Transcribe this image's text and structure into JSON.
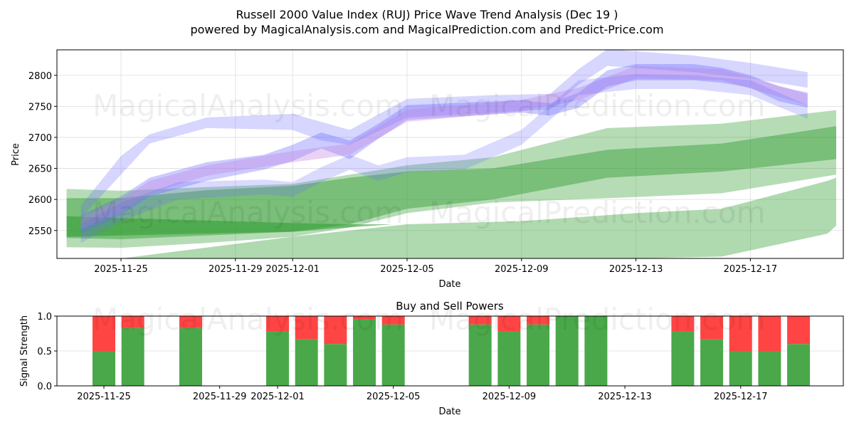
{
  "title_line1": "Russell 2000 Value Index (RUJ) Price Wave Trend Analysis (Dec 19 )",
  "title_line2": "powered by MagicalAnalysis.com and MagicalPrediction.com and Predict-Price.com",
  "watermarks": [
    "MagicalAnalysis.com",
    "MagicalPrediction.com"
  ],
  "chart_data": [
    {
      "type": "area",
      "title": "",
      "xlabel": "Date",
      "ylabel": "Price",
      "ylim": [
        2505,
        2841
      ],
      "x_ticks": [
        {
          "day": 0,
          "label": "2025-11-25"
        },
        {
          "day": 4,
          "label": "2025-11-29"
        },
        {
          "day": 6,
          "label": "2025-12-01"
        },
        {
          "day": 10,
          "label": "2025-12-05"
        },
        {
          "day": 14,
          "label": "2025-12-09"
        },
        {
          "day": 18,
          "label": "2025-12-13"
        },
        {
          "day": 22,
          "label": "2025-12-17"
        }
      ],
      "y_ticks": [
        2550,
        2600,
        2650,
        2700,
        2750,
        2800
      ],
      "x_unit": "days since 2025-11-25",
      "grid": true,
      "bands": [
        {
          "name": "green-band-wide",
          "color": "#2e9a2e",
          "opacity": 0.35,
          "x": [
            -1.9,
            0,
            3,
            6,
            8,
            10,
            13,
            17,
            21,
            25
          ],
          "upper": [
            2617,
            2614,
            2620,
            2625,
            2640,
            2655,
            2668,
            2715,
            2722,
            2744
          ],
          "lower": [
            2523,
            2522,
            2530,
            2540,
            2555,
            2578,
            2595,
            2602,
            2610,
            2640
          ]
        },
        {
          "name": "green-band-mid",
          "color": "#2e9a2e",
          "opacity": 0.45,
          "x": [
            -1.9,
            0,
            3,
            6,
            8,
            10,
            13,
            17,
            21,
            25
          ],
          "upper": [
            2602,
            2602,
            2615,
            2622,
            2635,
            2645,
            2650,
            2680,
            2690,
            2718
          ],
          "lower": [
            2538,
            2536,
            2542,
            2548,
            2560,
            2585,
            2600,
            2635,
            2645,
            2665
          ]
        },
        {
          "name": "green-band-dark",
          "color": "#2e9a2e",
          "opacity": 0.55,
          "x": [
            -1.9,
            0,
            3,
            6,
            8,
            9.5
          ],
          "upper": [
            2573,
            2570,
            2566,
            2562,
            2560,
            2560
          ],
          "lower": [
            2540,
            2542,
            2545,
            2548,
            2555,
            2560
          ]
        },
        {
          "name": "green-band-low",
          "color": "#2e9a2e",
          "opacity": 0.38,
          "x": [
            -1.9,
            0,
            6,
            10,
            14,
            18,
            21,
            24.7,
            25
          ],
          "upper": [
            2505,
            2505,
            2540,
            2560,
            2565,
            2578,
            2585,
            2630,
            2635
          ],
          "lower": [
            2505,
            2505,
            2505,
            2505,
            2505,
            2505,
            2508,
            2545,
            2558
          ]
        },
        {
          "name": "blue-band-upper",
          "color": "#6a6aff",
          "opacity": 0.28,
          "x": [
            -1.4,
            0,
            1,
            3,
            6,
            7,
            8,
            10,
            13,
            15,
            16,
            17,
            20,
            22,
            24
          ],
          "upper": [
            2590,
            2670,
            2705,
            2732,
            2738,
            2725,
            2712,
            2762,
            2768,
            2770,
            2810,
            2842,
            2832,
            2820,
            2805
          ],
          "lower": [
            2570,
            2640,
            2690,
            2715,
            2712,
            2695,
            2688,
            2732,
            2740,
            2745,
            2785,
            2815,
            2805,
            2795,
            2780
          ]
        },
        {
          "name": "blue-band-center",
          "color": "#6a6aff",
          "opacity": 0.35,
          "x": [
            -1.4,
            0,
            1,
            3,
            5,
            6,
            7,
            8,
            9,
            10,
            12,
            14,
            15,
            16,
            17,
            18,
            20,
            21,
            22,
            23,
            24
          ],
          "upper": [
            2575,
            2605,
            2635,
            2660,
            2672,
            2688,
            2708,
            2695,
            2722,
            2752,
            2756,
            2760,
            2755,
            2772,
            2808,
            2818,
            2818,
            2812,
            2800,
            2782,
            2772
          ],
          "lower": [
            2545,
            2575,
            2605,
            2630,
            2648,
            2662,
            2682,
            2665,
            2698,
            2728,
            2734,
            2740,
            2735,
            2748,
            2782,
            2792,
            2792,
            2788,
            2780,
            2758,
            2748
          ]
        },
        {
          "name": "purple-band-center",
          "color": "#c080e0",
          "opacity": 0.35,
          "x": [
            -1.4,
            0,
            1,
            3,
            6,
            8,
            10,
            14,
            16,
            18,
            21,
            24
          ],
          "upper": [
            2570,
            2600,
            2630,
            2655,
            2678,
            2690,
            2745,
            2760,
            2780,
            2815,
            2810,
            2770
          ],
          "lower": [
            2552,
            2580,
            2610,
            2638,
            2660,
            2672,
            2725,
            2742,
            2760,
            2795,
            2792,
            2752
          ]
        },
        {
          "name": "blue-band-lower",
          "color": "#6a6aff",
          "opacity": 0.25,
          "x": [
            -1.4,
            0,
            2,
            5,
            6,
            7,
            8,
            9,
            10,
            12,
            14,
            15,
            16,
            18,
            20,
            22,
            24
          ],
          "upper": [
            2560,
            2595,
            2628,
            2632,
            2628,
            2652,
            2672,
            2655,
            2668,
            2672,
            2712,
            2752,
            2792,
            2802,
            2800,
            2792,
            2752
          ],
          "lower": [
            2530,
            2565,
            2600,
            2608,
            2604,
            2628,
            2648,
            2630,
            2644,
            2648,
            2688,
            2728,
            2768,
            2778,
            2778,
            2768,
            2730
          ]
        }
      ]
    },
    {
      "type": "bar",
      "title": "Buy and Sell Powers",
      "xlabel": "Date",
      "ylabel": "Signal Strength",
      "ylim": [
        0,
        1
      ],
      "y_ticks": [
        "0.0",
        "0.5",
        "1.0"
      ],
      "x_ticks": [
        {
          "day": 0,
          "label": "2025-11-25"
        },
        {
          "day": 4,
          "label": "2025-11-29"
        },
        {
          "day": 6,
          "label": "2025-12-01"
        },
        {
          "day": 10,
          "label": "2025-12-05"
        },
        {
          "day": 14,
          "label": "2025-12-09"
        },
        {
          "day": 18,
          "label": "2025-12-13"
        },
        {
          "day": 22,
          "label": "2025-12-17"
        }
      ],
      "categories": [
        "2025-11-25",
        "2025-11-26",
        "2025-11-28",
        "2025-12-01",
        "2025-12-02",
        "2025-12-03",
        "2025-12-04",
        "2025-12-05",
        "2025-12-08",
        "2025-12-09",
        "2025-12-10",
        "2025-12-11",
        "2025-12-12",
        "2025-12-15",
        "2025-12-16",
        "2025-12-17",
        "2025-12-18",
        "2025-12-19"
      ],
      "days": [
        0,
        1,
        3,
        6,
        7,
        8,
        9,
        10,
        13,
        14,
        15,
        16,
        17,
        20,
        21,
        22,
        23,
        24
      ],
      "series": [
        {
          "name": "Buy",
          "color": "#4aa84a",
          "values": [
            0.5,
            0.83,
            0.83,
            0.78,
            0.67,
            0.6,
            0.95,
            0.88,
            0.88,
            0.78,
            0.88,
            1.0,
            1.0,
            0.78,
            0.67,
            0.5,
            0.5,
            0.6
          ]
        },
        {
          "name": "Sell",
          "color": "#ff4444",
          "values": [
            0.5,
            0.17,
            0.17,
            0.22,
            0.33,
            0.4,
            0.05,
            0.12,
            0.12,
            0.22,
            0.12,
            0.0,
            0.0,
            0.22,
            0.33,
            0.5,
            0.5,
            0.4
          ]
        }
      ]
    }
  ]
}
